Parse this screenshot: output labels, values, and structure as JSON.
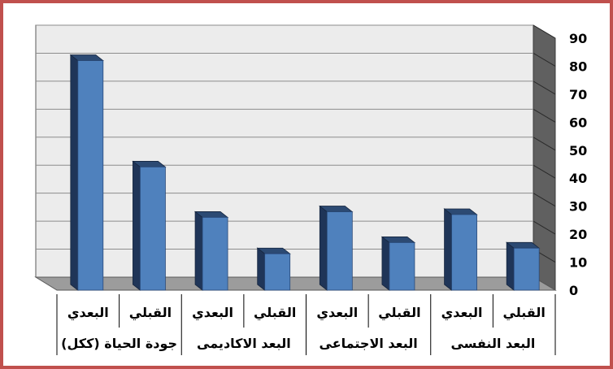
{
  "chart_data": {
    "type": "bar",
    "style": "3d-column",
    "direction": "rtl",
    "y_ticks": [
      0,
      10,
      20,
      30,
      40,
      50,
      60,
      70,
      80,
      90
    ],
    "ylim": [
      0,
      90
    ],
    "grid": true,
    "legend": "none",
    "categories": [
      "القبلي",
      "البعدي",
      "القبلي",
      "البعدي",
      "القبلي",
      "البعدي",
      "القبلي",
      "البعدي"
    ],
    "groups": [
      {
        "label": "البعد النفسى"
      },
      {
        "label": "البعد الاجتماعى"
      },
      {
        "label": "البعد الاكاديمى"
      },
      {
        "label": "جودة الحياة (ككل)"
      }
    ],
    "values": [
      15,
      27,
      17,
      28,
      13,
      26,
      44,
      82
    ],
    "colors": {
      "frame": "#c0504d",
      "bar_front": "#4f81bd",
      "bar_side": "#1f3558",
      "bar_top": "#2c4a73",
      "wall": "#ececec",
      "floor": "#9c9c9c",
      "side_wall": "#606060",
      "grid": "#8c8c8c"
    }
  }
}
